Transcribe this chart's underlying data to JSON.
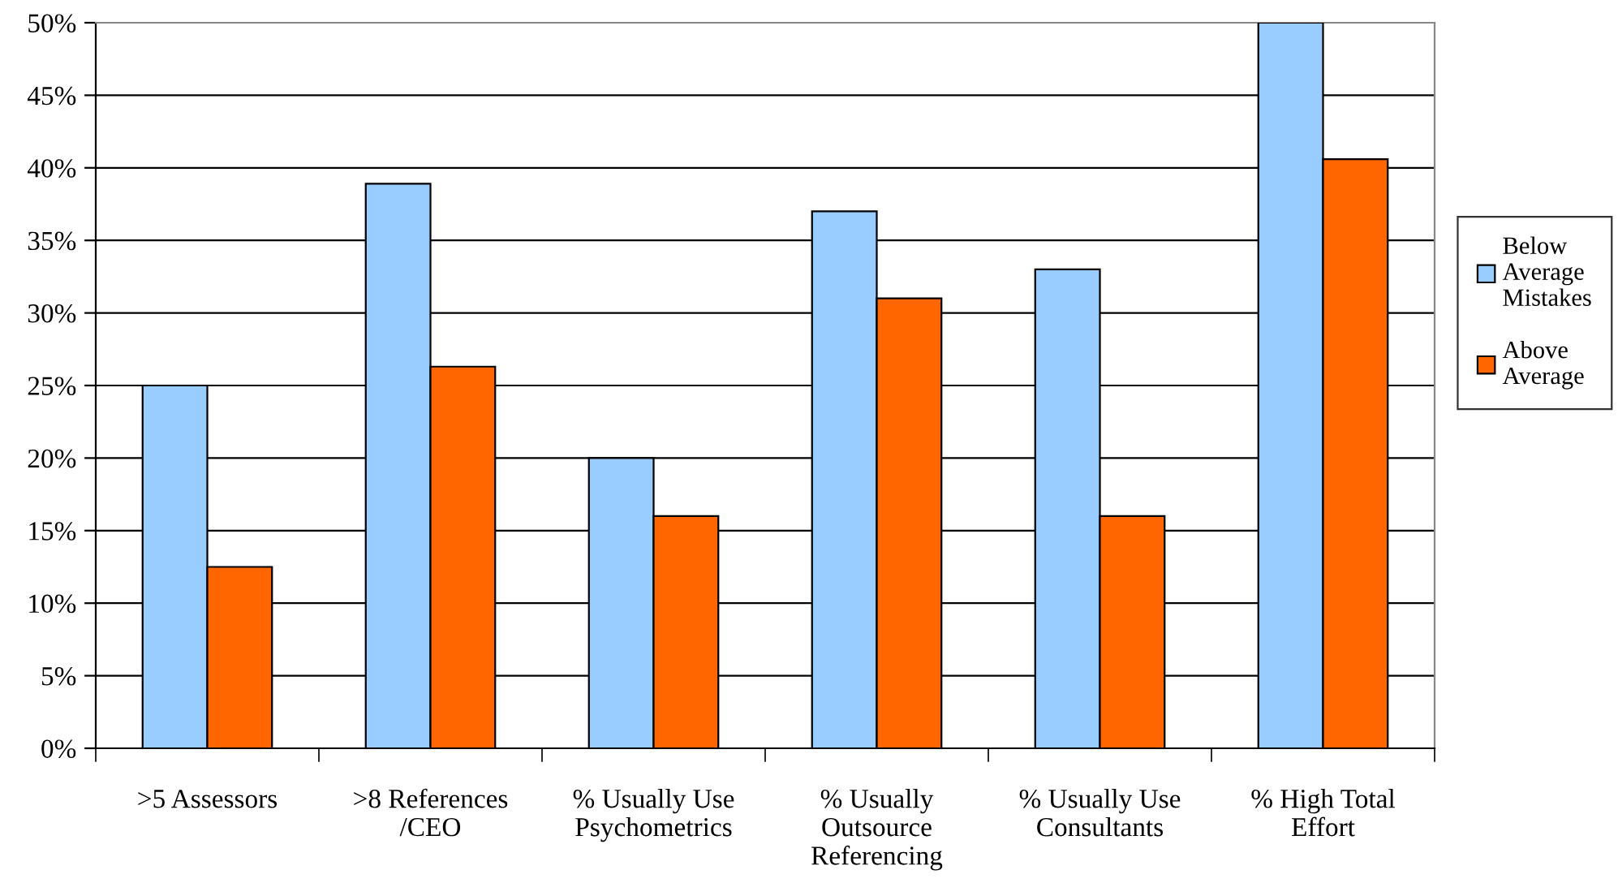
{
  "chart_data": {
    "type": "bar",
    "categories": [
      ">5 Assessors",
      ">8 References\n/CEO",
      "% Usually Use\nPsychometrics",
      "% Usually\nOutsource\nReferencing",
      "% Usually Use\nConsultants",
      "% High Total\nEffort"
    ],
    "series": [
      {
        "name": "Below\nAverage\nMistakes",
        "color": "#99ccff",
        "values": [
          25,
          38.9,
          20,
          37,
          33,
          50
        ]
      },
      {
        "name": "Above\nAverage",
        "color": "#ff6600",
        "values": [
          12.5,
          26.3,
          16,
          31,
          16,
          40.6
        ]
      }
    ],
    "ylim": [
      0,
      50
    ],
    "yticks": [
      {
        "value": 0,
        "label": "0%"
      },
      {
        "value": 5,
        "label": "5%"
      },
      {
        "value": 10,
        "label": "10%"
      },
      {
        "value": 15,
        "label": "15%"
      },
      {
        "value": 20,
        "label": "20%"
      },
      {
        "value": 25,
        "label": "25%"
      },
      {
        "value": 30,
        "label": "30%"
      },
      {
        "value": 35,
        "label": "35%"
      },
      {
        "value": 40,
        "label": "40%"
      },
      {
        "value": 45,
        "label": "45%"
      },
      {
        "value": 50,
        "label": "50%"
      }
    ],
    "grid": "y",
    "legend": "right"
  }
}
